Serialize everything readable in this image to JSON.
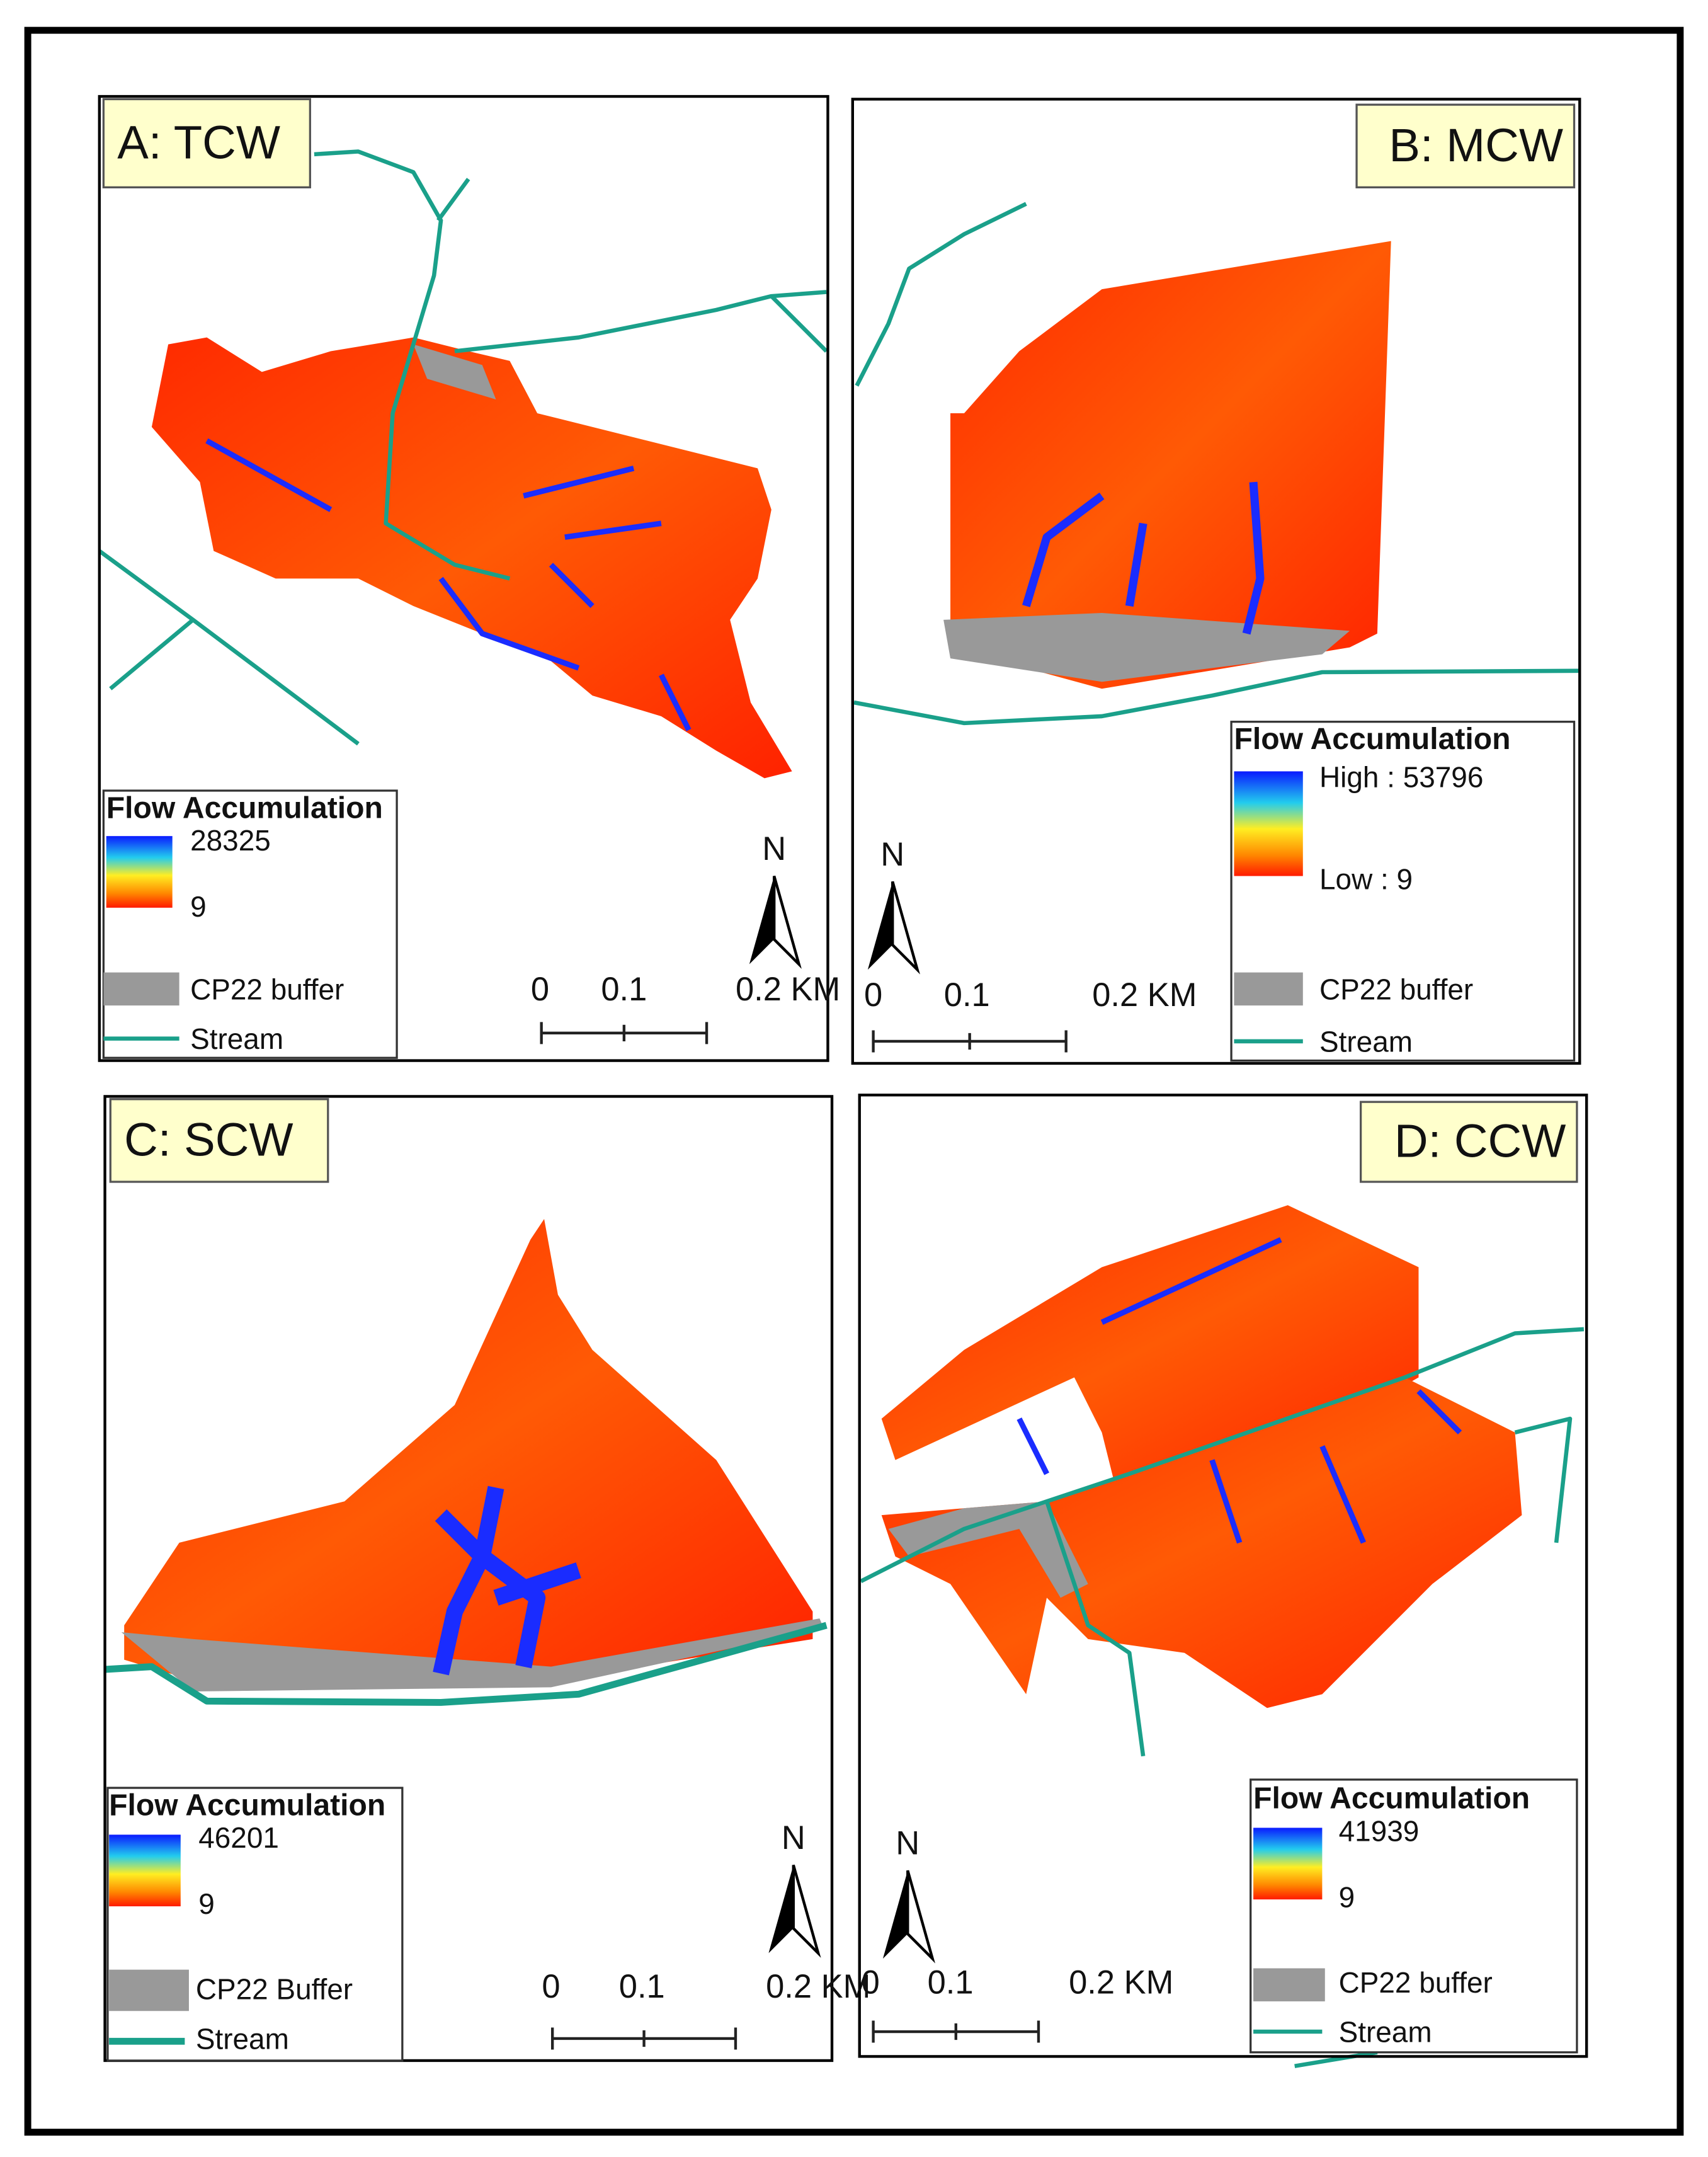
{
  "panels": [
    {
      "title": "A: TCW",
      "legend": {
        "title": "Flow Accumulation",
        "high": "28325",
        "low": "9",
        "buffer": "CP22 buffer",
        "stream": "Stream"
      },
      "scale": [
        "0",
        "0.1",
        "0.2 KM"
      ],
      "north": "N"
    },
    {
      "title": "B: MCW",
      "legend": {
        "title": "Flow Accumulation",
        "high": "High : 53796",
        "low": "Low : 9",
        "buffer": "CP22 buffer",
        "stream": "Stream"
      },
      "scale": [
        "0",
        "0.1",
        "0.2 KM"
      ],
      "north": "N"
    },
    {
      "title": "C: SCW",
      "legend": {
        "title": "Flow Accumulation",
        "high": "46201",
        "low": "9",
        "buffer": "CP22 Buffer",
        "stream": "Stream"
      },
      "scale": [
        "0",
        "0.1",
        "0.2 KM"
      ],
      "north": "N"
    },
    {
      "title": "D: CCW",
      "legend": {
        "title": "Flow Accumulation",
        "high": "41939",
        "low": "9",
        "buffer": "CP22 buffer",
        "stream": "Stream"
      },
      "scale": [
        "0",
        "0.1",
        "0.2 KM"
      ],
      "north": "N"
    }
  ]
}
